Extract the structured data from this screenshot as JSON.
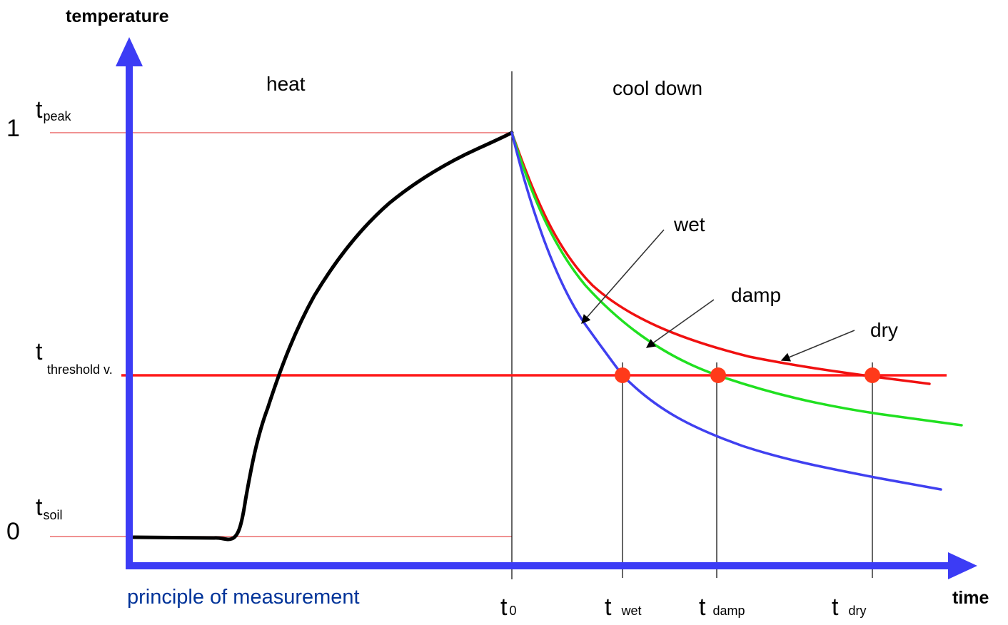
{
  "axes": {
    "y_title": "temperature",
    "x_title": "time",
    "y_tick_top": "1",
    "y_tick_bottom": "0",
    "axis_color": "#3c3cf5"
  },
  "levels": {
    "peak": {
      "main": "t",
      "sub": "peak"
    },
    "threshold": {
      "main": "t",
      "sub": "threshold v."
    },
    "soil": {
      "main": "t",
      "sub": "soil"
    }
  },
  "phases": {
    "heat": "heat",
    "cool": "cool down"
  },
  "curves": {
    "wet": {
      "label": "wet",
      "color": "#4040f0"
    },
    "damp": {
      "label": "damp",
      "color": "#20e020"
    },
    "dry": {
      "label": "dry",
      "color": "#f01010"
    },
    "heating": {
      "color": "#000000"
    }
  },
  "time_marks": {
    "t0": {
      "main": "t",
      "sub": "0"
    },
    "twet": {
      "main": "t",
      "sub": "wet"
    },
    "tdamp": {
      "main": "t",
      "sub": "damp"
    },
    "tdry": {
      "main": "t",
      "sub": "dry"
    }
  },
  "caption": "principle of measurement",
  "caption_color": "#003399",
  "threshold_color": "#ff1a1a",
  "marker_color": "#ff3a1a"
}
